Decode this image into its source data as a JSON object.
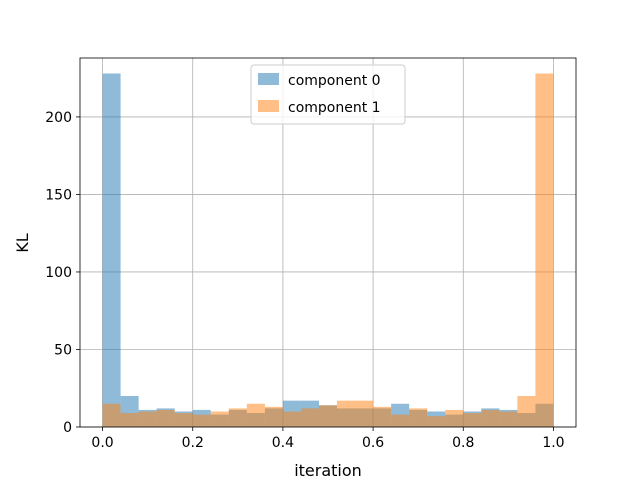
{
  "chart_data": {
    "type": "histogram",
    "xlabel": "iteration",
    "ylabel": "KL",
    "xlim": [
      -0.05,
      1.05
    ],
    "ylim": [
      0,
      238
    ],
    "xticks": [
      0.0,
      0.2,
      0.4,
      0.6,
      0.8,
      1.0
    ],
    "xtick_labels": [
      "0.0",
      "0.2",
      "0.4",
      "0.6",
      "0.8",
      "1.0"
    ],
    "yticks": [
      0,
      50,
      100,
      150,
      200
    ],
    "ytick_labels": [
      "0",
      "50",
      "100",
      "150",
      "200"
    ],
    "grid": true,
    "legend_position": "top-center",
    "bin_edges": [
      0.0,
      0.04,
      0.08,
      0.12,
      0.16,
      0.2,
      0.24,
      0.28,
      0.32,
      0.36,
      0.4,
      0.44,
      0.48,
      0.52,
      0.56,
      0.6,
      0.64,
      0.68,
      0.72,
      0.76,
      0.8,
      0.84,
      0.88,
      0.92,
      0.96,
      1.0
    ],
    "series": [
      {
        "name": "component 0",
        "color": "#1f77b4",
        "alpha": 0.5,
        "counts": [
          228,
          20,
          11,
          12,
          10,
          11,
          8,
          11,
          9,
          12,
          17,
          17,
          14,
          12,
          12,
          12,
          15,
          11,
          10,
          8,
          10,
          12,
          11,
          9,
          15
        ]
      },
      {
        "name": "component 1",
        "color": "#ff7f0e",
        "alpha": 0.5,
        "counts": [
          15,
          9,
          10,
          11,
          9,
          8,
          10,
          12,
          15,
          13,
          10,
          12,
          14,
          17,
          17,
          13,
          8,
          12,
          7,
          11,
          9,
          11,
          10,
          20,
          228
        ]
      }
    ]
  }
}
